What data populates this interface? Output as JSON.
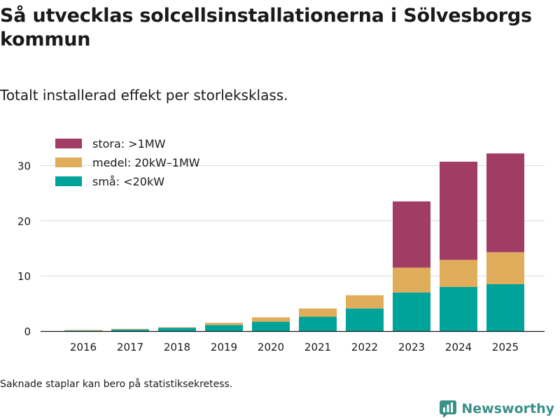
{
  "title": "Så utvecklas solcellsinstallationerna i Sölvesborgs kommun",
  "subtitle": "Totalt installerad effekt per storleksklass.",
  "note": "Saknade staplar kan bero på statistiksekretess.",
  "brand": {
    "name": "Newsworthy",
    "color": "#3a9188"
  },
  "chart_data": {
    "type": "bar",
    "stacked": true,
    "categories": [
      "2016",
      "2017",
      "2018",
      "2019",
      "2020",
      "2021",
      "2022",
      "2023",
      "2024",
      "2025"
    ],
    "series": [
      {
        "name": "små: <20kW",
        "color": "#00a39a",
        "values": [
          0.1,
          0.3,
          0.6,
          1.1,
          1.7,
          2.6,
          4.1,
          7.0,
          8.0,
          8.5
        ]
      },
      {
        "name": "medel: 20kW–1MW",
        "color": "#e0ad5b",
        "values": [
          0.1,
          0.1,
          0.1,
          0.4,
          0.8,
          1.5,
          2.4,
          4.5,
          4.9,
          5.8
        ]
      },
      {
        "name": "stora: >1MW",
        "color": "#a13d65",
        "values": [
          0,
          0,
          0,
          0,
          0,
          0,
          0,
          12.0,
          17.8,
          17.9
        ]
      }
    ],
    "legend_order": [
      "stora: >1MW",
      "medel: 20kW–1MW",
      "små: <20kW"
    ],
    "legend_position": "top-left",
    "yticks": [
      0,
      10,
      20,
      30
    ],
    "ylim": [
      0,
      34
    ],
    "grid": true,
    "xlabel": "",
    "ylabel": ""
  }
}
